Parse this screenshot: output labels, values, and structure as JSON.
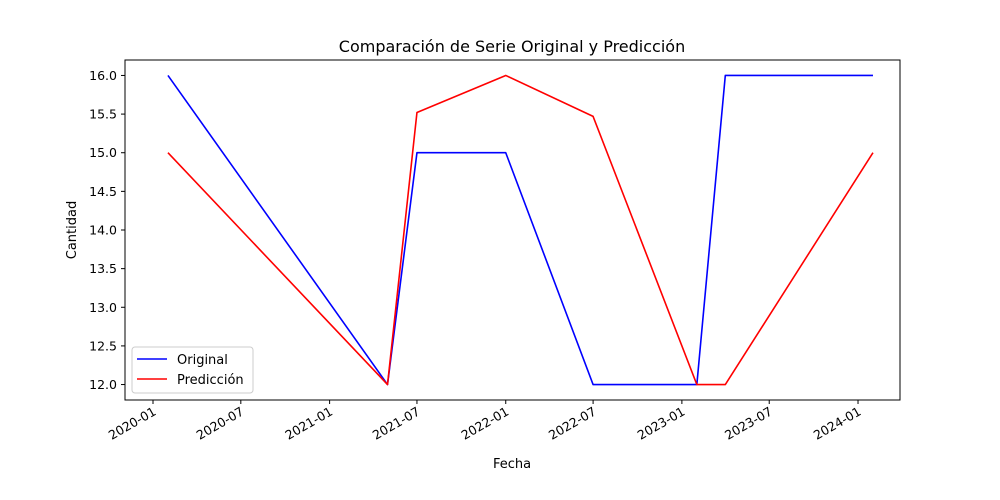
{
  "chart_data": {
    "type": "line",
    "title": "Comparación de Serie Original y Predicción",
    "xlabel": "Fecha",
    "ylabel": "Cantidad",
    "x_type": "date",
    "xlim": [
      "2019-11-04",
      "2024-03-28"
    ],
    "ylim": [
      11.8,
      16.2
    ],
    "x_ticks": [
      "2020-01-01",
      "2020-07-01",
      "2021-01-01",
      "2021-07-01",
      "2022-01-01",
      "2022-07-01",
      "2023-01-01",
      "2023-07-01",
      "2024-01-01"
    ],
    "x_tick_labels": [
      "2020-01",
      "2020-07",
      "2021-01",
      "2021-07",
      "2022-01",
      "2022-07",
      "2023-01",
      "2023-07",
      "2024-01"
    ],
    "y_ticks": [
      12.0,
      12.5,
      13.0,
      13.5,
      14.0,
      14.5,
      15.0,
      15.5,
      16.0
    ],
    "y_tick_labels": [
      "12.0",
      "12.5",
      "13.0",
      "13.5",
      "14.0",
      "14.5",
      "15.0",
      "15.5",
      "16.0"
    ],
    "grid": false,
    "legend_position": "lower-left",
    "series": [
      {
        "name": "Original",
        "color": "#0000ff",
        "x": [
          "2020-02-01",
          "2021-05-01",
          "2021-07-01",
          "2022-01-01",
          "2022-07-01",
          "2023-02-01",
          "2023-04-01",
          "2024-02-01"
        ],
        "y": [
          16.0,
          12.0,
          15.0,
          15.0,
          12.0,
          12.0,
          16.0,
          16.0
        ]
      },
      {
        "name": "Predicción",
        "color": "#ff0000",
        "x": [
          "2020-02-01",
          "2021-05-01",
          "2021-07-01",
          "2022-01-01",
          "2022-07-01",
          "2023-02-01",
          "2023-04-01",
          "2024-02-01"
        ],
        "y": [
          15.0,
          12.0,
          15.52,
          16.0,
          15.47,
          12.0,
          12.0,
          15.0
        ]
      }
    ]
  }
}
